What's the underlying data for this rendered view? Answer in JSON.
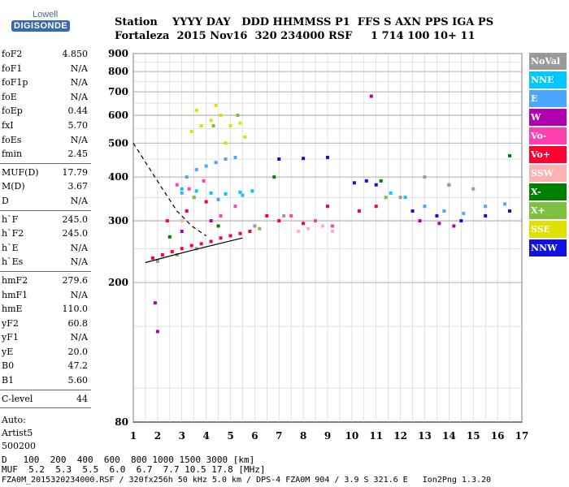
{
  "logo": {
    "line1": "Lowell",
    "line2": "DIGISONDE"
  },
  "header": {
    "row1": "Station    YYYY DAY   DDD HHMMSS P1  FFS S AXN PPS IGA PS",
    "row2": "Fortaleza  2015 Nov16  320 234000 RSF     1 714 100 10+ 11"
  },
  "params": [
    {
      "label": "foF2",
      "value": "4.850"
    },
    {
      "label": "foF1",
      "value": "N/A"
    },
    {
      "label": "foF1p",
      "value": "N/A"
    },
    {
      "label": "foE",
      "value": "N/A"
    },
    {
      "label": "foEp",
      "value": "0.44"
    },
    {
      "label": "fxI",
      "value": "5.70"
    },
    {
      "label": "foEs",
      "value": "N/A"
    },
    {
      "label": "fmin",
      "value": "2.45"
    },
    {
      "sep": true
    },
    {
      "label": "MUF(D)",
      "value": "17.79"
    },
    {
      "label": "M(D)",
      "value": "3.67"
    },
    {
      "label": "D",
      "value": "N/A"
    },
    {
      "sep": true
    },
    {
      "label": "h`F",
      "value": "245.0"
    },
    {
      "label": "h`F2",
      "value": "245.0"
    },
    {
      "label": "h`E",
      "value": "N/A"
    },
    {
      "label": "h`Es",
      "value": "N/A"
    },
    {
      "sep": true
    },
    {
      "label": "hmF2",
      "value": "279.6"
    },
    {
      "label": "hmF1",
      "value": "N/A"
    },
    {
      "label": "hmE",
      "value": "110.0"
    },
    {
      "label": "yF2",
      "value": "60.8"
    },
    {
      "label": "yF1",
      "value": "N/A"
    },
    {
      "label": "yE",
      "value": "20.0"
    },
    {
      "label": "B0",
      "value": "47.2"
    },
    {
      "label": "B1",
      "value": "5.60"
    },
    {
      "sep": true
    },
    {
      "label": "C-level",
      "value": "44"
    },
    {
      "sep": true
    }
  ],
  "auto": {
    "line1": "Auto:",
    "line2": "Artist5",
    "line3": "500200"
  },
  "legend": [
    {
      "label": "NoVal",
      "color": "#9a9a9a"
    },
    {
      "label": "NNE",
      "color": "#00c8ff"
    },
    {
      "label": "E",
      "color": "#4aa6ff"
    },
    {
      "label": "W",
      "color": "#b000b0"
    },
    {
      "label": "Vo-",
      "color": "#ff40b0"
    },
    {
      "label": "Vo+",
      "color": "#ff0030"
    },
    {
      "label": "SSW",
      "color": "#ffb0b0"
    },
    {
      "label": "X-",
      "color": "#008000"
    },
    {
      "label": "X+",
      "color": "#80c040"
    },
    {
      "label": "SSE",
      "color": "#e0e000"
    },
    {
      "label": "NNW",
      "color": "#1010e0"
    }
  ],
  "bottom": {
    "d_label": "D",
    "d_values": "   100  200  400  600  800 1000 1500 3000 [km]",
    "muf_label": "MUF",
    "muf_values": "  5.2  5.3  5.5  6.0  6.7  7.7 10.5 17.8 [MHz]",
    "footer": "FZA0M_2015320234000.RSF / 320fx256h 50 kHz 5.0 km / DPS-4 FZA0M 904 / 3.9 S 321.6 E   Ion2Png 1.3.20"
  },
  "chart_data": {
    "type": "scatter",
    "title": "",
    "xlabel": "",
    "ylabel": "",
    "xlim": [
      1,
      17
    ],
    "ylim": [
      80,
      900
    ],
    "yscale": "log",
    "xticks": [
      1,
      2,
      3,
      4,
      5,
      6,
      7,
      8,
      9,
      10,
      11,
      12,
      13,
      14,
      15,
      16,
      17
    ],
    "yticks": [
      80,
      200,
      300,
      400,
      500,
      600,
      700,
      800,
      900
    ],
    "grid": true,
    "legend_position": "right",
    "series": [
      {
        "name": "Vo+",
        "color": "#ff0030",
        "points": [
          [
            1.8,
            235
          ],
          [
            2.2,
            240
          ],
          [
            2.6,
            245
          ],
          [
            3.0,
            250
          ],
          [
            3.4,
            255
          ],
          [
            3.8,
            258
          ],
          [
            4.2,
            262
          ],
          [
            4.6,
            268
          ],
          [
            5.0,
            272
          ],
          [
            5.4,
            276
          ],
          [
            5.8,
            280
          ],
          [
            2.4,
            300
          ],
          [
            3.2,
            320
          ],
          [
            4.0,
            340
          ],
          [
            6.5,
            310
          ],
          [
            7.0,
            300
          ],
          [
            8.0,
            295
          ],
          [
            9.0,
            330
          ],
          [
            10.3,
            320
          ],
          [
            11.0,
            330
          ]
        ]
      },
      {
        "name": "E",
        "color": "#4aa6ff",
        "points": [
          [
            3.2,
            400
          ],
          [
            3.6,
            420
          ],
          [
            4.0,
            430
          ],
          [
            4.4,
            440
          ],
          [
            4.8,
            450
          ],
          [
            5.2,
            455
          ],
          [
            3.0,
            360
          ],
          [
            3.5,
            350
          ],
          [
            4.5,
            345
          ],
          [
            5.5,
            355
          ],
          [
            13.0,
            330
          ],
          [
            13.8,
            320
          ],
          [
            14.6,
            315
          ],
          [
            15.5,
            330
          ],
          [
            16.3,
            335
          ]
        ]
      },
      {
        "name": "SSE",
        "color": "#e0e000",
        "points": [
          [
            3.4,
            540
          ],
          [
            3.8,
            560
          ],
          [
            4.2,
            580
          ],
          [
            4.6,
            600
          ],
          [
            5.0,
            560
          ],
          [
            5.4,
            570
          ],
          [
            3.6,
            620
          ],
          [
            4.4,
            640
          ],
          [
            4.8,
            500
          ],
          [
            5.6,
            520
          ]
        ]
      },
      {
        "name": "NNW",
        "color": "#1010e0",
        "points": [
          [
            7.0,
            450
          ],
          [
            8.0,
            452
          ],
          [
            9.0,
            455
          ],
          [
            10.1,
            385
          ],
          [
            10.6,
            390
          ],
          [
            11.0,
            380
          ],
          [
            12.5,
            320
          ],
          [
            13.5,
            310
          ],
          [
            14.5,
            300
          ],
          [
            15.5,
            310
          ],
          [
            16.5,
            320
          ]
        ]
      },
      {
        "name": "W",
        "color": "#b000b0",
        "points": [
          [
            2.0,
            145
          ],
          [
            1.9,
            175
          ],
          [
            3.0,
            280
          ],
          [
            4.2,
            300
          ],
          [
            10.8,
            680
          ],
          [
            12.8,
            300
          ],
          [
            13.6,
            295
          ],
          [
            14.2,
            290
          ]
        ]
      },
      {
        "name": "X-",
        "color": "#008000",
        "points": [
          [
            2.5,
            270
          ],
          [
            4.5,
            290
          ],
          [
            6.8,
            400
          ],
          [
            11.2,
            390
          ],
          [
            16.5,
            460
          ],
          [
            14.0,
            380
          ]
        ]
      },
      {
        "name": "Vo-",
        "color": "#ff40b0",
        "points": [
          [
            2.8,
            380
          ],
          [
            3.3,
            370
          ],
          [
            3.9,
            390
          ],
          [
            4.6,
            310
          ],
          [
            5.2,
            330
          ],
          [
            7.5,
            310
          ],
          [
            8.5,
            300
          ],
          [
            9.2,
            290
          ]
        ]
      },
      {
        "name": "NNE",
        "color": "#00c8ff",
        "points": [
          [
            3.0,
            370
          ],
          [
            3.6,
            365
          ],
          [
            4.2,
            360
          ],
          [
            4.8,
            358
          ],
          [
            5.4,
            362
          ],
          [
            5.9,
            365
          ],
          [
            11.6,
            360
          ],
          [
            12.2,
            350
          ]
        ]
      },
      {
        "name": "SSW",
        "color": "#ffb0b0",
        "points": [
          [
            7.8,
            280
          ],
          [
            8.2,
            285
          ],
          [
            8.8,
            290
          ],
          [
            9.2,
            280
          ],
          [
            3.0,
            300
          ]
        ]
      },
      {
        "name": "X+",
        "color": "#80c040",
        "points": [
          [
            3.5,
            350
          ],
          [
            4.3,
            560
          ],
          [
            5.3,
            600
          ],
          [
            6.2,
            285
          ],
          [
            11.4,
            350
          ]
        ]
      },
      {
        "name": "NoVal",
        "color": "#9a9a9a",
        "points": [
          [
            2.0,
            230
          ],
          [
            2.8,
            240
          ],
          [
            3.6,
            250
          ],
          [
            6.0,
            290
          ],
          [
            7.2,
            310
          ],
          [
            12.0,
            350
          ],
          [
            13.0,
            400
          ],
          [
            14.0,
            380
          ],
          [
            15.0,
            370
          ]
        ]
      }
    ],
    "curves": [
      {
        "name": "trace",
        "style": "dashed",
        "color": "#000000",
        "points": [
          [
            1.0,
            500
          ],
          [
            1.6,
            430
          ],
          [
            2.2,
            370
          ],
          [
            2.8,
            320
          ],
          [
            3.4,
            290
          ],
          [
            4.0,
            272
          ]
        ]
      },
      {
        "name": "virtual-height",
        "style": "solid",
        "color": "#000000",
        "points": [
          [
            1.5,
            228
          ],
          [
            2.5,
            238
          ],
          [
            3.5,
            248
          ],
          [
            4.5,
            258
          ],
          [
            5.0,
            263
          ],
          [
            5.5,
            268
          ]
        ]
      }
    ]
  }
}
